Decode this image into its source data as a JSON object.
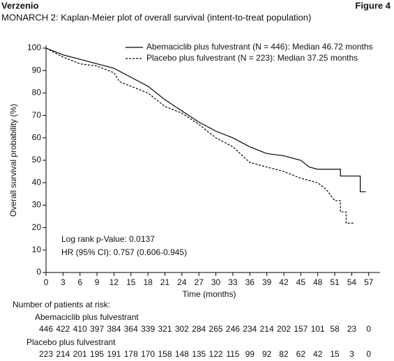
{
  "header": {
    "brand": "Verzenio",
    "figure": "Figure 4"
  },
  "chart_data": {
    "type": "line",
    "title": "MONARCH 2: Kaplan-Meier plot of overall survival (intent-to-treat population)",
    "x_label": "Time (months)",
    "y_label": "Overall survival probability (%)",
    "xlim": [
      0,
      59
    ],
    "ylim": [
      0,
      100
    ],
    "xticks": [
      0,
      3,
      6,
      9,
      12,
      15,
      18,
      21,
      24,
      27,
      30,
      33,
      36,
      39,
      42,
      45,
      48,
      51,
      54,
      57
    ],
    "yticks": [
      0,
      10,
      20,
      30,
      40,
      50,
      60,
      70,
      80,
      90,
      100
    ],
    "legend": "top-right",
    "annotations": [
      "Log rank p-Value: 0.0137",
      "HR (95% CI): 0.757 (0.606-0.945)"
    ],
    "series": [
      {
        "name": "Abemaciclib plus fulvestrant (N = 446): Median 46.72 months",
        "color": "#000000",
        "linestyle": "solid",
        "x": [
          0,
          3,
          6,
          9,
          12,
          15,
          18,
          21,
          24,
          27,
          30,
          33,
          36,
          39,
          42,
          45,
          46.5,
          48,
          52,
          52,
          55.5,
          55.5,
          56.5
        ],
        "values": [
          100,
          97,
          95,
          93,
          91,
          87,
          83,
          77,
          72,
          67,
          63,
          60,
          56,
          53,
          52,
          50,
          47,
          46,
          46,
          43,
          43,
          36,
          36
        ]
      },
      {
        "name": "Placebo plus fulvestrant (N = 223): Median 37.25 months",
        "color": "#000000",
        "linestyle": "dashed",
        "x": [
          0,
          3,
          6,
          9,
          12,
          13,
          15,
          18,
          21,
          24,
          27,
          30,
          33,
          36,
          39,
          42,
          45,
          48,
          49.5,
          51,
          52,
          52,
          53,
          53,
          54.5
        ],
        "values": [
          100,
          96,
          93,
          92,
          89,
          85,
          83,
          80,
          74,
          71,
          66,
          60,
          56,
          49,
          47,
          45,
          42,
          40,
          37,
          32,
          32,
          27,
          27,
          22,
          22
        ]
      }
    ],
    "risk_table": {
      "title": "Number of patients at risk:",
      "groups": [
        {
          "name": "Abemaciclib plus fulvestrant",
          "counts": [
            446,
            422,
            410,
            397,
            384,
            364,
            339,
            321,
            302,
            284,
            265,
            246,
            234,
            214,
            202,
            157,
            101,
            58,
            23,
            0
          ]
        },
        {
          "name": "Placebo plus fulvestrant",
          "counts": [
            223,
            214,
            201,
            195,
            191,
            178,
            170,
            158,
            148,
            135,
            122,
            115,
            99,
            92,
            82,
            62,
            42,
            15,
            3,
            0
          ]
        }
      ]
    }
  }
}
